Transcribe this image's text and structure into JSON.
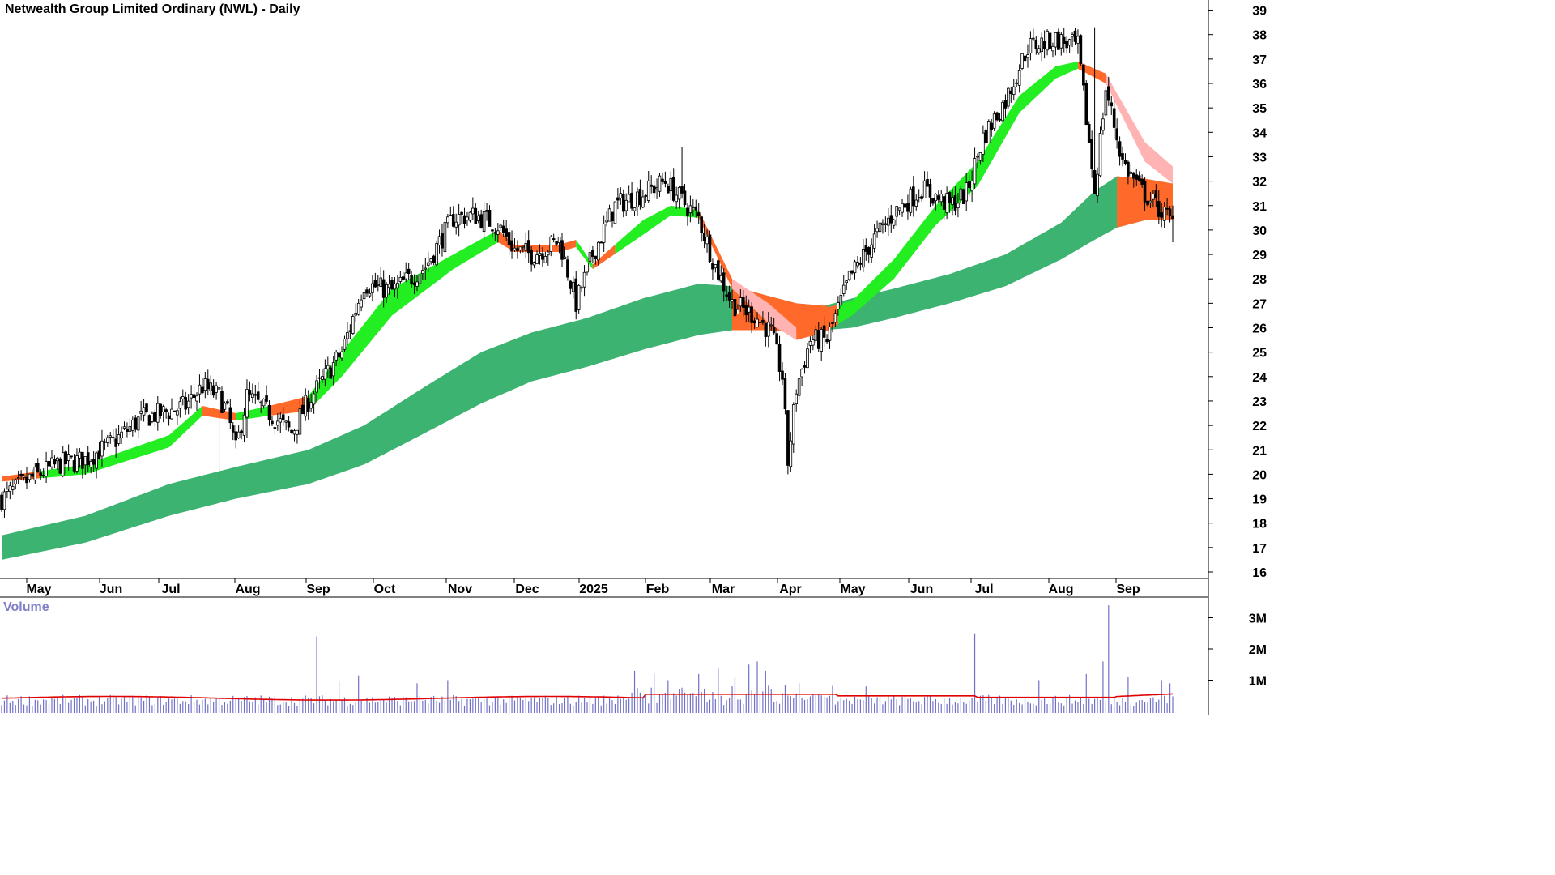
{
  "title": "Netwealth Group Limited Ordinary (NWL) - Daily",
  "volume_title": "Volume",
  "colors": {
    "long_band": "#3cb371",
    "long_band_bear": "#ff6a2a",
    "short_band_bull": "#22ee22",
    "short_band_bear": "#ff6a2a",
    "short_band_pale": "#ffb3b3",
    "candle": "#000000",
    "volume_bar": "#7070c8",
    "volume_avg": "#e00000",
    "axis": "#000000"
  },
  "chart_data": {
    "type": "candlestick",
    "price_axis": {
      "ticks": [
        16,
        17,
        18,
        19,
        20,
        21,
        22,
        23,
        24,
        25,
        26,
        27,
        28,
        29,
        30,
        31,
        32,
        33,
        34,
        35,
        36,
        37,
        38,
        39
      ],
      "range": [
        15.7,
        39.3
      ]
    },
    "x_labels": [
      "May",
      "Jun",
      "Jul",
      "Aug",
      "Sep",
      "Oct",
      "Nov",
      "Dec",
      "2025",
      "Feb",
      "Mar",
      "Apr",
      "May",
      "Jun",
      "Jul",
      "Aug",
      "Sep"
    ],
    "volume_axis": {
      "ticks": [
        {
          "value": 1,
          "label": "1M"
        },
        {
          "value": 2,
          "label": "2M"
        },
        {
          "value": 3,
          "label": "3M"
        }
      ],
      "range": [
        0,
        3.6
      ]
    },
    "close_path": [
      [
        0,
        19.0
      ],
      [
        10,
        19.8
      ],
      [
        20,
        20.4
      ],
      [
        30,
        20.6
      ],
      [
        40,
        21.3
      ],
      [
        50,
        22.3
      ],
      [
        58,
        22.5
      ],
      [
        66,
        22.8
      ],
      [
        72,
        23.6
      ],
      [
        78,
        23.2
      ],
      [
        81,
        22.5
      ],
      [
        84,
        21.0
      ],
      [
        88,
        23.2
      ],
      [
        96,
        22.5
      ],
      [
        104,
        21.7
      ],
      [
        110,
        23.0
      ],
      [
        122,
        25.0
      ],
      [
        130,
        27.8
      ],
      [
        140,
        27.5
      ],
      [
        152,
        28.5
      ],
      [
        162,
        30.5
      ],
      [
        170,
        30.6
      ],
      [
        178,
        30.2
      ],
      [
        184,
        29.2
      ],
      [
        190,
        29.0
      ],
      [
        196,
        29.3
      ],
      [
        200,
        29.6
      ],
      [
        206,
        27.0
      ],
      [
        212,
        29.0
      ],
      [
        220,
        31.0
      ],
      [
        230,
        31.5
      ],
      [
        238,
        32.0
      ],
      [
        244,
        31.2
      ],
      [
        250,
        30.5
      ],
      [
        256,
        28.5
      ],
      [
        262,
        27.0
      ],
      [
        270,
        26.5
      ],
      [
        276,
        25.8
      ],
      [
        280,
        24.0
      ],
      [
        282,
        20.5
      ],
      [
        285,
        23.5
      ],
      [
        290,
        25.5
      ],
      [
        296,
        25.5
      ],
      [
        304,
        28.0
      ],
      [
        312,
        29.5
      ],
      [
        320,
        30.7
      ],
      [
        330,
        31.7
      ],
      [
        340,
        31.0
      ],
      [
        346,
        31.5
      ],
      [
        352,
        33.8
      ],
      [
        360,
        35.3
      ],
      [
        368,
        37.5
      ],
      [
        378,
        37.8
      ],
      [
        386,
        37.5
      ],
      [
        392,
        31.6
      ],
      [
        396,
        35.8
      ],
      [
        402,
        32.8
      ],
      [
        408,
        31.7
      ],
      [
        414,
        31.0
      ],
      [
        420,
        30.3
      ]
    ],
    "short_band_upper": [
      [
        0,
        19.9
      ],
      [
        30,
        20.4
      ],
      [
        60,
        21.6
      ],
      [
        72,
        22.8
      ],
      [
        84,
        22.5
      ],
      [
        96,
        22.8
      ],
      [
        110,
        23.2
      ],
      [
        122,
        25.0
      ],
      [
        140,
        27.6
      ],
      [
        162,
        29.0
      ],
      [
        178,
        30.0
      ],
      [
        184,
        29.4
      ],
      [
        200,
        29.4
      ],
      [
        206,
        29.6
      ],
      [
        212,
        28.6
      ],
      [
        230,
        30.4
      ],
      [
        240,
        31.0
      ],
      [
        250,
        30.8
      ],
      [
        262,
        28.0
      ],
      [
        275,
        27.0
      ],
      [
        285,
        26.0
      ],
      [
        295,
        26.8
      ],
      [
        305,
        27.1
      ],
      [
        320,
        28.8
      ],
      [
        335,
        31.0
      ],
      [
        350,
        32.8
      ],
      [
        365,
        35.5
      ],
      [
        378,
        36.7
      ],
      [
        386,
        36.9
      ],
      [
        396,
        36.4
      ],
      [
        410,
        33.6
      ],
      [
        420,
        32.6
      ]
    ],
    "short_band_lower": [
      [
        0,
        19.7
      ],
      [
        30,
        20.0
      ],
      [
        60,
        21.1
      ],
      [
        72,
        22.4
      ],
      [
        84,
        22.2
      ],
      [
        96,
        22.4
      ],
      [
        110,
        22.6
      ],
      [
        122,
        24.0
      ],
      [
        140,
        26.5
      ],
      [
        162,
        28.4
      ],
      [
        178,
        29.5
      ],
      [
        184,
        29.1
      ],
      [
        200,
        29.1
      ],
      [
        206,
        29.3
      ],
      [
        212,
        28.4
      ],
      [
        230,
        29.8
      ],
      [
        240,
        30.6
      ],
      [
        250,
        30.5
      ],
      [
        262,
        27.6
      ],
      [
        275,
        26.2
      ],
      [
        285,
        25.5
      ],
      [
        295,
        25.8
      ],
      [
        305,
        26.5
      ],
      [
        320,
        28.0
      ],
      [
        335,
        30.2
      ],
      [
        350,
        31.8
      ],
      [
        365,
        34.8
      ],
      [
        378,
        36.2
      ],
      [
        386,
        36.6
      ],
      [
        396,
        36.0
      ],
      [
        410,
        32.8
      ],
      [
        420,
        31.9
      ]
    ],
    "long_band_upper": [
      [
        0,
        17.5
      ],
      [
        30,
        18.3
      ],
      [
        60,
        19.6
      ],
      [
        84,
        20.3
      ],
      [
        110,
        21.0
      ],
      [
        130,
        22.0
      ],
      [
        152,
        23.6
      ],
      [
        172,
        25.0
      ],
      [
        190,
        25.8
      ],
      [
        210,
        26.4
      ],
      [
        230,
        27.2
      ],
      [
        250,
        27.8
      ],
      [
        262,
        27.7
      ],
      [
        275,
        27.3
      ],
      [
        285,
        27.0
      ],
      [
        295,
        26.9
      ],
      [
        305,
        27.2
      ],
      [
        320,
        27.6
      ],
      [
        340,
        28.2
      ],
      [
        360,
        29.0
      ],
      [
        380,
        30.3
      ],
      [
        392,
        31.6
      ],
      [
        400,
        32.2
      ],
      [
        410,
        32.1
      ],
      [
        420,
        31.9
      ]
    ],
    "long_band_lower": [
      [
        0,
        16.5
      ],
      [
        30,
        17.2
      ],
      [
        60,
        18.3
      ],
      [
        84,
        19.0
      ],
      [
        110,
        19.6
      ],
      [
        130,
        20.4
      ],
      [
        152,
        21.7
      ],
      [
        172,
        22.9
      ],
      [
        190,
        23.8
      ],
      [
        210,
        24.4
      ],
      [
        230,
        25.1
      ],
      [
        250,
        25.7
      ],
      [
        262,
        25.9
      ],
      [
        275,
        25.9
      ],
      [
        285,
        25.8
      ],
      [
        295,
        25.9
      ],
      [
        305,
        26.0
      ],
      [
        320,
        26.4
      ],
      [
        340,
        27.0
      ],
      [
        360,
        27.7
      ],
      [
        380,
        28.8
      ],
      [
        392,
        29.6
      ],
      [
        400,
        30.1
      ],
      [
        410,
        30.4
      ],
      [
        420,
        30.4
      ]
    ],
    "spikes": [
      {
        "i": 78,
        "lo": 19.7
      },
      {
        "i": 88,
        "lo": 21.5
      },
      {
        "i": 244,
        "hi": 33.4
      },
      {
        "i": 282,
        "lo": 20.0
      },
      {
        "i": 392,
        "hi": 38.3
      },
      {
        "i": 392,
        "lo": 31.5
      },
      {
        "i": 420,
        "lo": 29.5
      }
    ]
  }
}
